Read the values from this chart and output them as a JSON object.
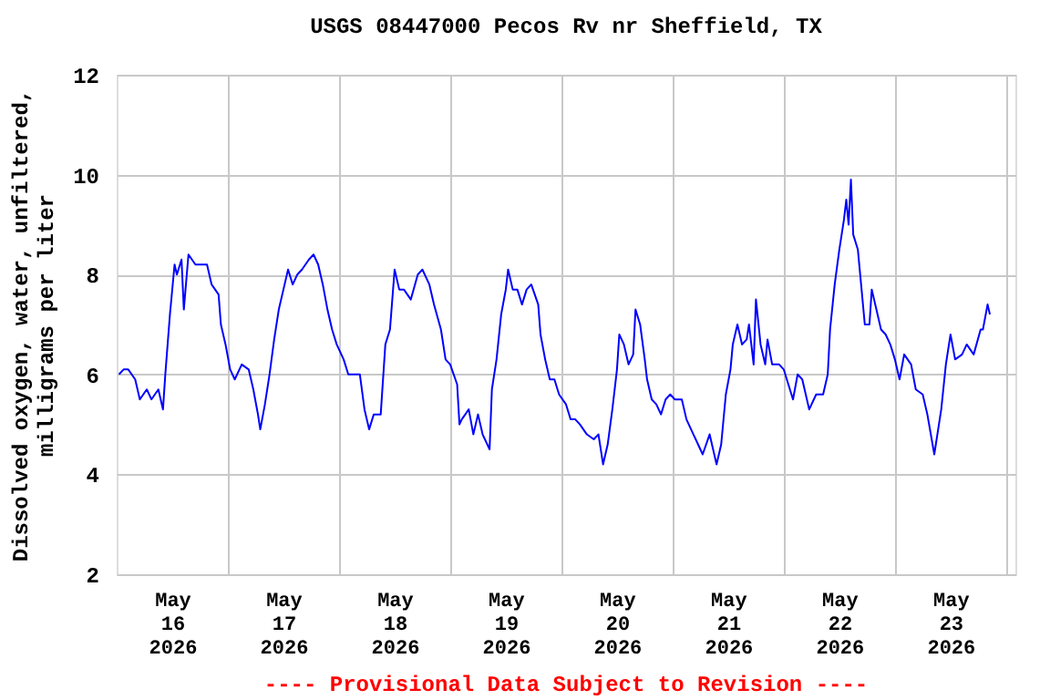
{
  "chart_data": {
    "type": "line",
    "title": "USGS 08447000 Pecos Rv nr Sheffield, TX",
    "ylabel": "Dissolved oxygen, water, unfiltered,\nmilligrams per liter",
    "annotations": [
      "---- Provisional Data Subject to Revision ----"
    ],
    "xlim": [
      "2026-05-16T00:00",
      "2026-05-24T02:00"
    ],
    "xticks": [
      {
        "value": "2026-05-16T12:00",
        "label": "May\n16\n2026"
      },
      {
        "value": "2026-05-17T00:00",
        "label": null
      },
      {
        "value": "2026-05-17T12:00",
        "label": "May\n17\n2026"
      },
      {
        "value": "2026-05-18T00:00",
        "label": null
      },
      {
        "value": "2026-05-18T12:00",
        "label": "May\n18\n2026"
      },
      {
        "value": "2026-05-19T00:00",
        "label": null
      },
      {
        "value": "2026-05-19T12:00",
        "label": "May\n19\n2026"
      },
      {
        "value": "2026-05-20T00:00",
        "label": null
      },
      {
        "value": "2026-05-20T12:00",
        "label": "May\n20\n2026"
      },
      {
        "value": "2026-05-21T00:00",
        "label": null
      },
      {
        "value": "2026-05-21T12:00",
        "label": "May\n21\n2026"
      },
      {
        "value": "2026-05-22T00:00",
        "label": null
      },
      {
        "value": "2026-05-22T12:00",
        "label": "May\n22\n2026"
      },
      {
        "value": "2026-05-23T00:00",
        "label": null
      },
      {
        "value": "2026-05-23T12:00",
        "label": "May\n23\n2026"
      },
      {
        "value": "2026-05-24T00:00",
        "label": null
      }
    ],
    "ylim": [
      2,
      12
    ],
    "yticks": [
      2,
      4,
      6,
      8,
      10,
      12
    ],
    "grid": true,
    "marker": "none",
    "line_style": "solid",
    "x": [
      "2026-05-16T00:30",
      "2026-05-16T01:30",
      "2026-05-16T02:30",
      "2026-05-16T04:00",
      "2026-05-16T05:00",
      "2026-05-16T06:30",
      "2026-05-16T07:30",
      "2026-05-16T09:00",
      "2026-05-16T10:00",
      "2026-05-16T10:30",
      "2026-05-16T11:30",
      "2026-05-16T12:30",
      "2026-05-16T13:00",
      "2026-05-16T14:00",
      "2026-05-16T14:30",
      "2026-05-16T15:30",
      "2026-05-16T17:00",
      "2026-05-16T18:00",
      "2026-05-16T19:30",
      "2026-05-16T20:30",
      "2026-05-16T22:00",
      "2026-05-16T22:30",
      "2026-05-16T23:30",
      "2026-05-17T00:30",
      "2026-05-17T01:30",
      "2026-05-17T03:00",
      "2026-05-17T04:30",
      "2026-05-17T05:30",
      "2026-05-17T06:30",
      "2026-05-17T07:00",
      "2026-05-17T08:00",
      "2026-05-17T09:00",
      "2026-05-17T10:00",
      "2026-05-17T11:00",
      "2026-05-17T12:00",
      "2026-05-17T13:00",
      "2026-05-17T14:00",
      "2026-05-17T15:00",
      "2026-05-17T16:00",
      "2026-05-17T17:30",
      "2026-05-17T18:30",
      "2026-05-17T19:30",
      "2026-05-17T20:30",
      "2026-05-17T21:30",
      "2026-05-17T22:30",
      "2026-05-17T23:30",
      "2026-05-18T01:00",
      "2026-05-18T02:00",
      "2026-05-18T03:30",
      "2026-05-18T04:30",
      "2026-05-18T05:30",
      "2026-05-18T06:30",
      "2026-05-18T07:30",
      "2026-05-18T09:00",
      "2026-05-18T10:00",
      "2026-05-18T11:00",
      "2026-05-18T12:00",
      "2026-05-18T13:00",
      "2026-05-18T14:00",
      "2026-05-18T15:30",
      "2026-05-18T17:00",
      "2026-05-18T18:00",
      "2026-05-18T19:30",
      "2026-05-18T20:30",
      "2026-05-18T22:00",
      "2026-05-18T23:00",
      "2026-05-19T00:00",
      "2026-05-19T01:30",
      "2026-05-19T02:00",
      "2026-05-19T02:30",
      "2026-05-19T04:00",
      "2026-05-19T05:00",
      "2026-05-19T06:00",
      "2026-05-19T07:00",
      "2026-05-19T08:30",
      "2026-05-19T09:00",
      "2026-05-19T10:00",
      "2026-05-19T11:00",
      "2026-05-19T12:00",
      "2026-05-19T12:30",
      "2026-05-19T13:30",
      "2026-05-19T14:30",
      "2026-05-19T15:30",
      "2026-05-19T16:30",
      "2026-05-19T17:30",
      "2026-05-19T19:00",
      "2026-05-19T19:30",
      "2026-05-19T20:30",
      "2026-05-19T21:30",
      "2026-05-19T22:30",
      "2026-05-19T23:30",
      "2026-05-20T01:00",
      "2026-05-20T02:00",
      "2026-05-20T03:00",
      "2026-05-20T04:00",
      "2026-05-20T05:30",
      "2026-05-20T07:00",
      "2026-05-20T08:00",
      "2026-05-20T09:00",
      "2026-05-20T10:00",
      "2026-05-20T11:00",
      "2026-05-20T12:00",
      "2026-05-20T12:30",
      "2026-05-20T13:30",
      "2026-05-20T14:30",
      "2026-05-20T15:30",
      "2026-05-20T16:00",
      "2026-05-20T17:00",
      "2026-05-20T18:00",
      "2026-05-20T18:30",
      "2026-05-20T19:30",
      "2026-05-20T20:30",
      "2026-05-20T21:30",
      "2026-05-20T22:30",
      "2026-05-20T23:30",
      "2026-05-21T00:30",
      "2026-05-21T02:00",
      "2026-05-21T03:00",
      "2026-05-21T04:30",
      "2026-05-21T05:30",
      "2026-05-21T06:30",
      "2026-05-21T08:00",
      "2026-05-21T09:30",
      "2026-05-21T10:30",
      "2026-05-21T11:30",
      "2026-05-21T12:30",
      "2026-05-21T13:00",
      "2026-05-21T14:00",
      "2026-05-21T15:00",
      "2026-05-21T16:00",
      "2026-05-21T16:30",
      "2026-05-21T17:30",
      "2026-05-21T18:00",
      "2026-05-21T19:00",
      "2026-05-21T20:00",
      "2026-05-21T20:30",
      "2026-05-21T21:30",
      "2026-05-21T23:00",
      "2026-05-22T00:00",
      "2026-05-22T01:00",
      "2026-05-22T02:00",
      "2026-05-22T03:00",
      "2026-05-22T04:00",
      "2026-05-22T05:30",
      "2026-05-22T07:00",
      "2026-05-22T08:30",
      "2026-05-22T09:30",
      "2026-05-22T10:00",
      "2026-05-22T11:00",
      "2026-05-22T12:00",
      "2026-05-22T13:00",
      "2026-05-22T13:30",
      "2026-05-22T14:00",
      "2026-05-22T14:30",
      "2026-05-22T15:00",
      "2026-05-22T16:00",
      "2026-05-22T16:30",
      "2026-05-22T17:30",
      "2026-05-22T18:30",
      "2026-05-22T19:00",
      "2026-05-22T20:00",
      "2026-05-22T21:00",
      "2026-05-22T22:00",
      "2026-05-22T23:00",
      "2026-05-23T00:00",
      "2026-05-23T01:00",
      "2026-05-23T02:00",
      "2026-05-23T03:30",
      "2026-05-23T04:30",
      "2026-05-23T06:00",
      "2026-05-23T07:00",
      "2026-05-23T08:30",
      "2026-05-23T09:00",
      "2026-05-23T10:00",
      "2026-05-23T11:00",
      "2026-05-23T12:00",
      "2026-05-23T13:00",
      "2026-05-23T14:30",
      "2026-05-23T15:30",
      "2026-05-23T17:00",
      "2026-05-23T18:30",
      "2026-05-23T19:00",
      "2026-05-23T20:00",
      "2026-05-23T20:30"
    ],
    "series": [
      {
        "color": "#0000ff",
        "values": [
          6.0,
          6.1,
          6.1,
          5.9,
          5.5,
          5.7,
          5.5,
          5.7,
          5.3,
          6.0,
          7.2,
          8.2,
          8.0,
          8.3,
          7.3,
          8.4,
          8.2,
          8.2,
          8.2,
          7.8,
          7.6,
          7.0,
          6.6,
          6.1,
          5.9,
          6.2,
          6.1,
          5.7,
          5.2,
          4.9,
          5.4,
          6.0,
          6.7,
          7.3,
          7.7,
          8.1,
          7.8,
          8.0,
          8.1,
          8.3,
          8.4,
          8.2,
          7.8,
          7.3,
          6.9,
          6.6,
          6.3,
          6.0,
          6.0,
          6.0,
          5.3,
          4.9,
          5.2,
          5.2,
          6.6,
          6.9,
          8.1,
          7.7,
          7.7,
          7.5,
          8.0,
          8.1,
          7.8,
          7.4,
          6.9,
          6.3,
          6.2,
          5.8,
          5.0,
          5.1,
          5.3,
          4.8,
          5.2,
          4.8,
          4.5,
          5.7,
          6.3,
          7.2,
          7.7,
          8.1,
          7.7,
          7.7,
          7.4,
          7.7,
          7.8,
          7.4,
          6.8,
          6.3,
          5.9,
          5.9,
          5.6,
          5.4,
          5.1,
          5.1,
          5.0,
          4.8,
          4.7,
          4.8,
          4.2,
          4.6,
          5.3,
          6.1,
          6.8,
          6.6,
          6.2,
          6.4,
          7.3,
          7.0,
          6.3,
          5.9,
          5.5,
          5.4,
          5.2,
          5.5,
          5.6,
          5.5,
          5.5,
          5.1,
          4.8,
          4.6,
          4.4,
          4.8,
          4.2,
          4.6,
          5.6,
          6.1,
          6.6,
          7.0,
          6.6,
          6.7,
          7.0,
          6.2,
          7.5,
          6.6,
          6.2,
          6.7,
          6.2,
          6.2,
          6.1,
          5.8,
          5.5,
          6.0,
          5.9,
          5.3,
          5.6,
          5.6,
          6.0,
          6.9,
          7.8,
          8.5,
          9.1,
          9.5,
          9.0,
          9.9,
          8.8,
          8.5,
          8.0,
          7.0,
          7.0,
          7.7,
          7.3,
          6.9,
          6.8,
          6.6,
          6.3,
          5.9,
          6.4,
          6.2,
          5.7,
          5.6,
          5.2,
          4.4,
          4.7,
          5.3,
          6.2,
          6.8,
          6.3,
          6.4,
          6.6,
          6.4,
          6.9,
          6.9,
          7.4,
          7.2
        ]
      }
    ]
  }
}
